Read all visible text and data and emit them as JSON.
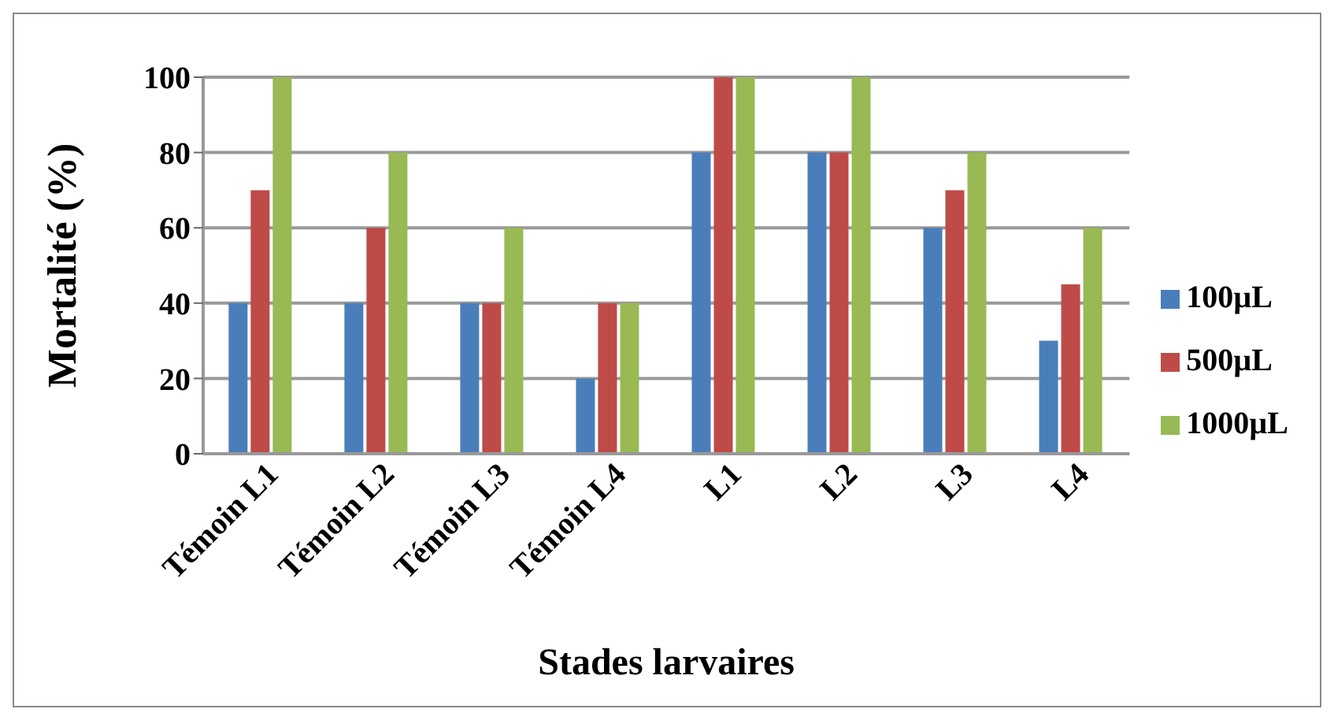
{
  "chart_data": {
    "type": "bar",
    "xlabel": "Stades larvaires",
    "ylabel": "Mortalité (%)",
    "categories": [
      "Témoin L1",
      "Témoin L2",
      "Témoin L3",
      "Témoin L4",
      "L1",
      "L2",
      "L3",
      "L4"
    ],
    "series": [
      {
        "name": "100µL",
        "color": "#4a7ebb",
        "values": [
          40,
          40,
          40,
          20,
          80,
          80,
          60,
          30
        ]
      },
      {
        "name": "500µL",
        "color": "#be4b48",
        "values": [
          70,
          60,
          40,
          40,
          100,
          80,
          70,
          45
        ]
      },
      {
        "name": "1000µL",
        "color": "#98b954",
        "values": [
          100,
          80,
          60,
          40,
          100,
          100,
          80,
          60
        ]
      }
    ],
    "ylim": [
      0,
      100
    ],
    "yticks": [
      0,
      20,
      40,
      60,
      80,
      100
    ],
    "grid": "y",
    "legend": "right"
  }
}
